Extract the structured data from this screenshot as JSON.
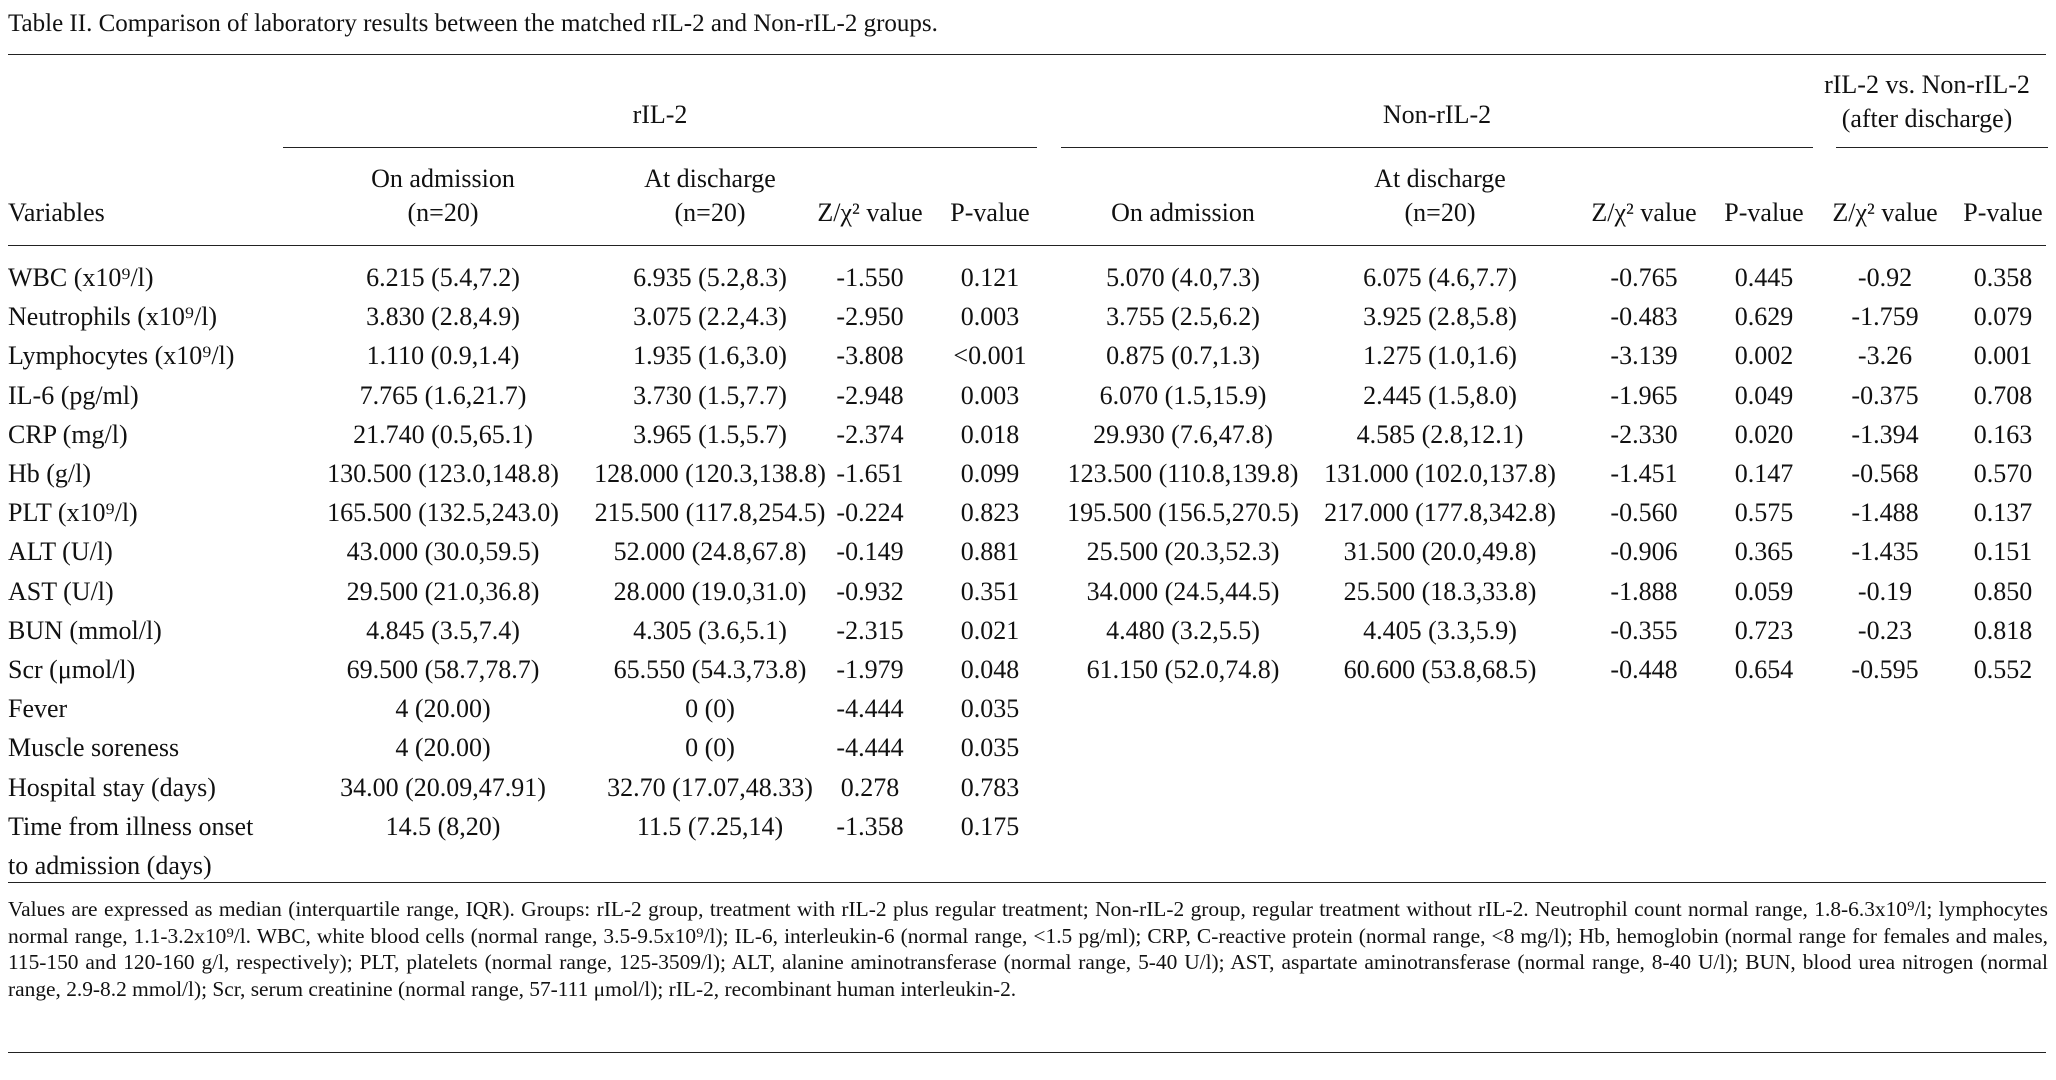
{
  "caption": "Table II. Comparison of laboratory results between the matched rIL-2 and Non-rIL-2 groups.",
  "groups": {
    "ril2": "rIL-2",
    "nonril2": "Non-rIL-2",
    "compare_line1": "rIL-2 vs. Non-rIL-2",
    "compare_line2": "(after discharge)"
  },
  "columns": {
    "variables": "Variables",
    "on_admission": "On admission",
    "n20": "(n=20)",
    "at_discharge": "At discharge",
    "zchi": "Z/χ² value",
    "pvalue": "P-value"
  },
  "rows": [
    {
      "variable": "WBC (x10⁹/l)",
      "r_adm": "6.215 (5.4,7.2)",
      "r_dis": "6.935 (5.2,8.3)",
      "r_z": "-1.550",
      "r_p": "0.121",
      "n_adm": "5.070 (4.0,7.3)",
      "n_dis": "6.075 (4.6,7.7)",
      "n_z": "-0.765",
      "n_p": "0.445",
      "c_z": "-0.92",
      "c_p": "0.358"
    },
    {
      "variable": "Neutrophils (x10⁹/l)",
      "r_adm": "3.830 (2.8,4.9)",
      "r_dis": "3.075 (2.2,4.3)",
      "r_z": "-2.950",
      "r_p": "0.003",
      "n_adm": "3.755 (2.5,6.2)",
      "n_dis": "3.925 (2.8,5.8)",
      "n_z": "-0.483",
      "n_p": "0.629",
      "c_z": "-1.759",
      "c_p": "0.079"
    },
    {
      "variable": "Lymphocytes (x10⁹/l)",
      "r_adm": "1.110 (0.9,1.4)",
      "r_dis": "1.935 (1.6,3.0)",
      "r_z": "-3.808",
      "r_p": "<0.001",
      "n_adm": "0.875 (0.7,1.3)",
      "n_dis": "1.275 (1.0,1.6)",
      "n_z": "-3.139",
      "n_p": "0.002",
      "c_z": "-3.26",
      "c_p": "0.001"
    },
    {
      "variable": "IL-6 (pg/ml)",
      "r_adm": "7.765 (1.6,21.7)",
      "r_dis": "3.730 (1.5,7.7)",
      "r_z": "-2.948",
      "r_p": "0.003",
      "n_adm": "6.070 (1.5,15.9)",
      "n_dis": "2.445 (1.5,8.0)",
      "n_z": "-1.965",
      "n_p": "0.049",
      "c_z": "-0.375",
      "c_p": "0.708"
    },
    {
      "variable": "CRP (mg/l)",
      "r_adm": "21.740 (0.5,65.1)",
      "r_dis": "3.965 (1.5,5.7)",
      "r_z": "-2.374",
      "r_p": "0.018",
      "n_adm": "29.930 (7.6,47.8)",
      "n_dis": "4.585 (2.8,12.1)",
      "n_z": "-2.330",
      "n_p": "0.020",
      "c_z": "-1.394",
      "c_p": "0.163"
    },
    {
      "variable": "Hb (g/l)",
      "r_adm": "130.500 (123.0,148.8)",
      "r_dis": "128.000 (120.3,138.8)",
      "r_z": "-1.651",
      "r_p": "0.099",
      "n_adm": "123.500 (110.8,139.8)",
      "n_dis": "131.000 (102.0,137.8)",
      "n_z": "-1.451",
      "n_p": "0.147",
      "c_z": "-0.568",
      "c_p": "0.570"
    },
    {
      "variable": "PLT (x10⁹/l)",
      "r_adm": "165.500 (132.5,243.0)",
      "r_dis": "215.500 (117.8,254.5)",
      "r_z": "-0.224",
      "r_p": "0.823",
      "n_adm": "195.500 (156.5,270.5)",
      "n_dis": "217.000 (177.8,342.8)",
      "n_z": "-0.560",
      "n_p": "0.575",
      "c_z": "-1.488",
      "c_p": "0.137"
    },
    {
      "variable": "ALT (U/l)",
      "r_adm": "43.000 (30.0,59.5)",
      "r_dis": "52.000 (24.8,67.8)",
      "r_z": "-0.149",
      "r_p": "0.881",
      "n_adm": "25.500 (20.3,52.3)",
      "n_dis": "31.500 (20.0,49.8)",
      "n_z": "-0.906",
      "n_p": "0.365",
      "c_z": "-1.435",
      "c_p": "0.151"
    },
    {
      "variable": "AST (U/l)",
      "r_adm": "29.500 (21.0,36.8)",
      "r_dis": "28.000 (19.0,31.0)",
      "r_z": "-0.932",
      "r_p": "0.351",
      "n_adm": "34.000 (24.5,44.5)",
      "n_dis": "25.500 (18.3,33.8)",
      "n_z": "-1.888",
      "n_p": "0.059",
      "c_z": "-0.19",
      "c_p": "0.850"
    },
    {
      "variable": "BUN (mmol/l)",
      "r_adm": "4.845 (3.5,7.4)",
      "r_dis": "4.305 (3.6,5.1)",
      "r_z": "-2.315",
      "r_p": "0.021",
      "n_adm": "4.480 (3.2,5.5)",
      "n_dis": "4.405 (3.3,5.9)",
      "n_z": "-0.355",
      "n_p": "0.723",
      "c_z": "-0.23",
      "c_p": "0.818"
    },
    {
      "variable": "Scr (μmol/l)",
      "r_adm": "69.500 (58.7,78.7)",
      "r_dis": "65.550 (54.3,73.8)",
      "r_z": "-1.979",
      "r_p": "0.048",
      "n_adm": "61.150 (52.0,74.8)",
      "n_dis": "60.600 (53.8,68.5)",
      "n_z": "-0.448",
      "n_p": "0.654",
      "c_z": "-0.595",
      "c_p": "0.552"
    },
    {
      "variable": "Fever",
      "r_adm": "4 (20.00)",
      "r_dis": "0 (0)",
      "r_z": "-4.444",
      "r_p": "0.035",
      "n_adm": "",
      "n_dis": "",
      "n_z": "",
      "n_p": "",
      "c_z": "",
      "c_p": ""
    },
    {
      "variable": "Muscle soreness",
      "r_adm": "4 (20.00)",
      "r_dis": "0 (0)",
      "r_z": "-4.444",
      "r_p": "0.035",
      "n_adm": "",
      "n_dis": "",
      "n_z": "",
      "n_p": "",
      "c_z": "",
      "c_p": ""
    },
    {
      "variable": "Hospital stay (days)",
      "r_adm": "34.00 (20.09,47.91)",
      "r_dis": "32.70 (17.07,48.33)",
      "r_z": "0.278",
      "r_p": "0.783",
      "n_adm": "",
      "n_dis": "",
      "n_z": "",
      "n_p": "",
      "c_z": "",
      "c_p": ""
    },
    {
      "variable": "Time from illness onset",
      "r_adm": "14.5 (8,20)",
      "r_dis": "11.5 (7.25,14)",
      "r_z": "-1.358",
      "r_p": "0.175",
      "n_adm": "",
      "n_dis": "",
      "n_z": "",
      "n_p": "",
      "c_z": "",
      "c_p": ""
    },
    {
      "variable": "to admission (days)",
      "r_adm": "",
      "r_dis": "",
      "r_z": "",
      "r_p": "",
      "n_adm": "",
      "n_dis": "",
      "n_z": "",
      "n_p": "",
      "c_z": "",
      "c_p": ""
    }
  ],
  "footnote": "Values are expressed as median (interquartile range, IQR). Groups: rIL-2 group, treatment with rIL-2 plus regular treatment; Non-rIL-2 group, regular treatment without rIL-2. Neutrophil count normal range, 1.8-6.3x10⁹/l; lymphocytes normal range, 1.1-3.2x10⁹/l. WBC, white blood cells (normal range, 3.5-9.5x10⁹/l); IL-6, interleukin-6 (normal range, <1.5 pg/ml); CRP, C-reactive protein (normal range, <8 mg/l); Hb, hemoglobin (normal range for females and males, 115-150 and 120-160 g/l, respectively); PLT, platelets (normal range, 125-3509/l); ALT, alanine aminotransferase (normal range, 5-40 U/l); AST, aspartate aminotransferase (normal range, 8-40 U/l); BUN, blood urea nitrogen (normal range, 2.9-8.2 mmol/l); Scr, serum creatinine (normal range, 57-111 μmol/l); rIL-2, recombinant human interleukin-2."
}
